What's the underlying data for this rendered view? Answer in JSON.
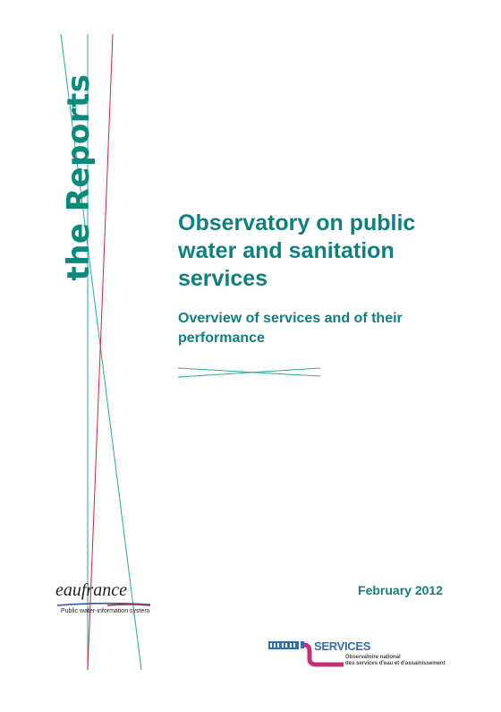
{
  "cover": {
    "series_label": "the Reports",
    "title": "Observatory on public water and sanitation services",
    "subtitle": "Overview of services and of their performance",
    "date": "February 2012"
  },
  "eaufrance_logo": {
    "wordmark": "eaufrance",
    "tagline": "Public water-information system"
  },
  "services_logo": {
    "name": "SERVICES",
    "line1": "Observatoire national",
    "line2": "des services d'eau et d'assainissement"
  },
  "colors": {
    "teal": "#107f7f",
    "line_teal": "#29a89b",
    "line_red": "#d2243a",
    "services_blue": "#2c6fb5",
    "services_magenta": "#c4307a"
  }
}
